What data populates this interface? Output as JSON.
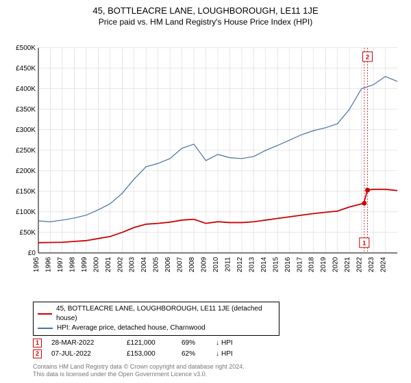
{
  "title": "45, BOTTLEACRE LANE, LOUGHBOROUGH, LE11 1JE",
  "subtitle": "Price paid vs. HM Land Registry's House Price Index (HPI)",
  "chart": {
    "type": "line",
    "background_color": "#ffffff",
    "grid_color": "#d0d0d0",
    "axis_color": "#000000",
    "label_fontsize": 10,
    "y": {
      "min": 0,
      "max": 500000,
      "step": 50000,
      "labels": [
        "£0",
        "£50K",
        "£100K",
        "£150K",
        "£200K",
        "£250K",
        "£300K",
        "£350K",
        "£400K",
        "£450K",
        "£500K"
      ]
    },
    "x": {
      "min": 1995,
      "max": 2025,
      "labels": [
        "1995",
        "1996",
        "1997",
        "1998",
        "1999",
        "2000",
        "2001",
        "2002",
        "2003",
        "2004",
        "2005",
        "2006",
        "2007",
        "2008",
        "2009",
        "2010",
        "2011",
        "2012",
        "2013",
        "2014",
        "2015",
        "2016",
        "2017",
        "2018",
        "2019",
        "2020",
        "2021",
        "2022",
        "2023",
        "2024"
      ]
    },
    "series": [
      {
        "name": "property",
        "label": "45, BOTTLEACRE LANE, LOUGHBOROUGH, LE11 1JE (detached house)",
        "color": "#cc0000",
        "line_width": 1.8,
        "points": [
          [
            1995,
            25000
          ],
          [
            1996,
            25500
          ],
          [
            1997,
            26000
          ],
          [
            1998,
            28000
          ],
          [
            1999,
            30000
          ],
          [
            2000,
            35000
          ],
          [
            2001,
            40000
          ],
          [
            2002,
            50000
          ],
          [
            2003,
            62000
          ],
          [
            2004,
            70000
          ],
          [
            2005,
            72000
          ],
          [
            2006,
            75000
          ],
          [
            2007,
            80000
          ],
          [
            2008,
            82000
          ],
          [
            2009,
            72000
          ],
          [
            2010,
            76000
          ],
          [
            2011,
            74000
          ],
          [
            2012,
            74000
          ],
          [
            2013,
            76000
          ],
          [
            2014,
            80000
          ],
          [
            2015,
            84000
          ],
          [
            2016,
            88000
          ],
          [
            2017,
            92000
          ],
          [
            2018,
            96000
          ],
          [
            2019,
            99000
          ],
          [
            2020,
            102000
          ],
          [
            2021,
            112000
          ],
          [
            2022.2,
            121000
          ],
          [
            2022.5,
            153000
          ],
          [
            2023,
            155000
          ],
          [
            2024,
            155000
          ],
          [
            2025,
            152000
          ]
        ]
      },
      {
        "name": "hpi",
        "label": "HPI: Average price, detached house, Charnwood",
        "color": "#4a6fa5",
        "line_width": 1.2,
        "points": [
          [
            1995,
            78000
          ],
          [
            1996,
            76000
          ],
          [
            1997,
            80000
          ],
          [
            1998,
            85000
          ],
          [
            1999,
            92000
          ],
          [
            2000,
            105000
          ],
          [
            2001,
            120000
          ],
          [
            2002,
            145000
          ],
          [
            2003,
            180000
          ],
          [
            2004,
            210000
          ],
          [
            2005,
            218000
          ],
          [
            2006,
            230000
          ],
          [
            2007,
            255000
          ],
          [
            2008,
            265000
          ],
          [
            2009,
            225000
          ],
          [
            2010,
            240000
          ],
          [
            2011,
            232000
          ],
          [
            2012,
            230000
          ],
          [
            2013,
            235000
          ],
          [
            2014,
            250000
          ],
          [
            2015,
            262000
          ],
          [
            2016,
            275000
          ],
          [
            2017,
            288000
          ],
          [
            2018,
            298000
          ],
          [
            2019,
            305000
          ],
          [
            2020,
            315000
          ],
          [
            2021,
            350000
          ],
          [
            2022,
            400000
          ],
          [
            2023,
            410000
          ],
          [
            2024,
            430000
          ],
          [
            2025,
            418000
          ]
        ]
      }
    ],
    "markers": [
      {
        "n": "1",
        "x": 2022.24,
        "y": 121000,
        "dot": true
      },
      {
        "n": "2",
        "x": 2022.51,
        "y": 153000,
        "dot": true,
        "box_top": true
      }
    ]
  },
  "legend": [
    {
      "color": "#cc0000",
      "label": "45, BOTTLEACRE LANE, LOUGHBOROUGH, LE11 1JE (detached house)"
    },
    {
      "color": "#4a6fa5",
      "label": "HPI: Average price, detached house, Charnwood"
    }
  ],
  "transactions": [
    {
      "n": "1",
      "date": "28-MAR-2022",
      "price": "£121,000",
      "pct": "69%",
      "dir": "↓",
      "suffix": "HPI"
    },
    {
      "n": "2",
      "date": "07-JUL-2022",
      "price": "£153,000",
      "pct": "62%",
      "dir": "↓",
      "suffix": "HPI"
    }
  ],
  "attribution1": "Contains HM Land Registry data © Crown copyright and database right 2024.",
  "attribution2": "This data is licensed under the Open Government Licence v3.0."
}
